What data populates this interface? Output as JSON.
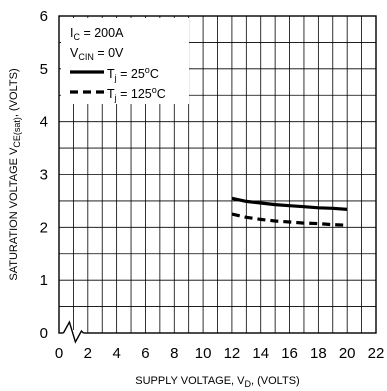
{
  "chart_data": {
    "type": "line",
    "xlabel": {
      "main": "SUPPLY VOLTAGE, V",
      "sub": "D",
      "tail": ", (VOLTS)"
    },
    "ylabel": {
      "main": "SATURATION VOLTAGE V",
      "sub": "CE(sat)",
      "tail": ", (VOLTS)"
    },
    "xlim": [
      0,
      22
    ],
    "ylim": [
      0,
      6
    ],
    "x_ticks": [
      "0",
      "2",
      "4",
      "6",
      "8",
      "10",
      "12",
      "14",
      "16",
      "18",
      "20",
      "22"
    ],
    "y_ticks": [
      "0",
      "1",
      "2",
      "3",
      "4",
      "5",
      "6"
    ],
    "x_grid_step": 1,
    "y_grid_step": 0.5,
    "grid": true,
    "axis_break": true,
    "conditions": [
      {
        "main": "I",
        "sub": "C",
        "tail": " = 200A"
      },
      {
        "main": "V",
        "sub": "CIN",
        "tail": " = 0V"
      }
    ],
    "legend_placement": "top-left",
    "series": [
      {
        "label_main": "T",
        "label_sub": "j",
        "label_tail": " = 25",
        "label_sup": "o",
        "label_unit": "C",
        "style": "solid",
        "x": [
          12,
          13,
          14,
          15,
          16,
          17,
          18,
          19,
          20
        ],
        "y": [
          2.55,
          2.49,
          2.46,
          2.43,
          2.41,
          2.39,
          2.37,
          2.36,
          2.34
        ]
      },
      {
        "label_main": "T",
        "label_sub": "j",
        "label_tail": " = 125",
        "label_sup": "o",
        "label_unit": "C",
        "style": "dashed",
        "x": [
          12,
          13,
          14,
          15,
          16,
          17,
          18,
          19,
          20
        ],
        "y": [
          2.25,
          2.19,
          2.15,
          2.12,
          2.1,
          2.08,
          2.07,
          2.05,
          2.04
        ]
      }
    ],
    "line_color": "#000000"
  }
}
